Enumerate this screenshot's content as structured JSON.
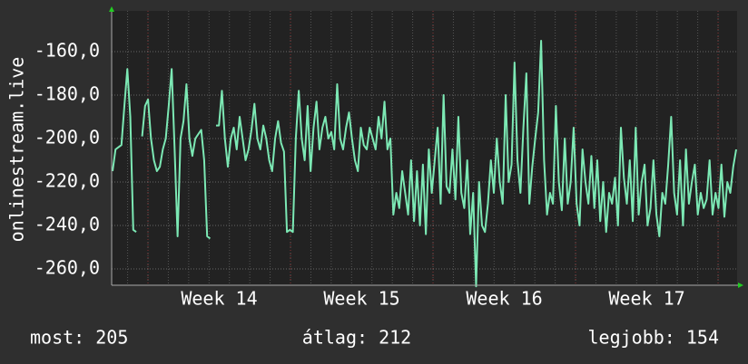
{
  "chart_data": {
    "type": "line",
    "y_label": "onlinestream.live",
    "x_labels": [
      "Week 14",
      "Week 15",
      "Week 16",
      "Week 17"
    ],
    "series": [
      {
        "name": "onlinestream.live",
        "color": "#7ce8b4",
        "values": [
          -215,
          -205,
          -204,
          -203,
          -185,
          -168,
          -190,
          -242,
          -243,
          null,
          -199,
          -185,
          -182,
          -200,
          -210,
          -215,
          -213,
          -205,
          -200,
          -185,
          -168,
          -205,
          -245,
          -200,
          -192,
          -175,
          -200,
          -208,
          -200,
          -198,
          -196,
          -210,
          -245,
          -246,
          null,
          -194,
          -194,
          -178,
          -200,
          -213,
          -200,
          -195,
          -205,
          -190,
          -200,
          -210,
          -205,
          -196,
          -184,
          -200,
          -205,
          -194,
          -200,
          -210,
          -215,
          -200,
          -192,
          -202,
          -206,
          -243,
          -242,
          -243,
          -200,
          -178,
          -200,
          -210,
          -185,
          -215,
          -195,
          -183,
          -205,
          -195,
          -190,
          -200,
          -197,
          -205,
          -175,
          -200,
          -205,
          -195,
          -188,
          -200,
          -210,
          -215,
          -195,
          -203,
          -205,
          -195,
          -200,
          -205,
          -190,
          -200,
          -183,
          -205,
          -200,
          -235,
          -225,
          -232,
          -215,
          -225,
          -235,
          -210,
          -238,
          -215,
          -240,
          -212,
          -244,
          -205,
          -225,
          -210,
          -195,
          -230,
          -180,
          -222,
          -225,
          -205,
          -228,
          -190,
          -225,
          -232,
          -210,
          -244,
          -225,
          -268,
          -220,
          -240,
          -243,
          -230,
          -210,
          -225,
          -200,
          -220,
          -230,
          -180,
          -220,
          -212,
          -165,
          -210,
          -225,
          -195,
          -170,
          -230,
          -213,
          -200,
          -188,
          -155,
          -210,
          -235,
          -225,
          -230,
          -185,
          -220,
          -233,
          -200,
          -230,
          -220,
          -195,
          -230,
          -240,
          -205,
          -220,
          -230,
          -208,
          -232,
          -210,
          -238,
          -220,
          -243,
          -225,
          -230,
          -218,
          -240,
          -195,
          -218,
          -230,
          -210,
          -238,
          -195,
          -235,
          -220,
          -212,
          -240,
          -232,
          -210,
          -235,
          -245,
          -225,
          -230,
          -212,
          -190,
          -225,
          -235,
          -210,
          -240,
          -205,
          -230,
          -220,
          -212,
          -235,
          -225,
          -232,
          -228,
          -210,
          -235,
          -225,
          -232,
          -212,
          -236,
          -220,
          -225,
          -213,
          -205
        ]
      }
    ],
    "ylim": [
      -267.5,
      -141.25
    ],
    "yticks": [
      {
        "value": -160,
        "label": "-160,0"
      },
      {
        "value": -180,
        "label": "-180,0"
      },
      {
        "value": -200,
        "label": "-200,0"
      },
      {
        "value": -220,
        "label": "-220,0"
      },
      {
        "value": -240,
        "label": "-240,0"
      },
      {
        "value": -260,
        "label": "-260,0"
      }
    ],
    "grid": true,
    "footer": [
      "most: 205",
      "átlag: 212",
      "legjobb: 154"
    ]
  }
}
